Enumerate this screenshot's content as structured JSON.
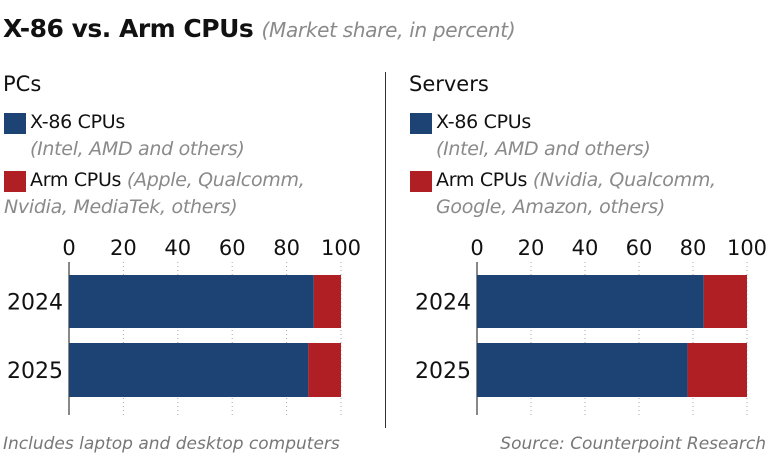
{
  "header": {
    "title": "X-86 vs. Arm CPUs",
    "subtitle": "(Market share, in percent)"
  },
  "footer": {
    "note": "Includes laptop and desktop computers",
    "source": "Source: Counterpoint Research"
  },
  "colors": {
    "x86": "#1c4373",
    "arm": "#b01f24"
  },
  "chart_data": [
    {
      "type": "bar",
      "orientation": "horizontal",
      "stacked": true,
      "title": "PCs",
      "categories": [
        "2024",
        "2025"
      ],
      "xlim": [
        0,
        100
      ],
      "ticks": [
        "0",
        "20",
        "40",
        "60",
        "80",
        "100"
      ],
      "legend": [
        {
          "name": "X-86 CPUs",
          "detail": "(Intel, AMD and others)"
        },
        {
          "name": "Arm CPUs",
          "detail": "(Apple, Qualcomm, Nvidia, MediaTek, others)",
          "detail_line1": "(Apple, Qualcomm,",
          "detail_line2": "Nvidia, MediaTek, others)"
        }
      ],
      "series": [
        {
          "name": "X-86 CPUs",
          "values": [
            90,
            88
          ]
        },
        {
          "name": "Arm CPUs",
          "values": [
            10,
            12
          ]
        }
      ]
    },
    {
      "type": "bar",
      "orientation": "horizontal",
      "stacked": true,
      "title": "Servers",
      "categories": [
        "2024",
        "2025"
      ],
      "xlim": [
        0,
        100
      ],
      "ticks": [
        "0",
        "20",
        "40",
        "60",
        "80",
        "100"
      ],
      "legend": [
        {
          "name": "X-86 CPUs",
          "detail": "(Intel, AMD and others)"
        },
        {
          "name": "Arm CPUs",
          "detail": "(Nvidia, Qualcomm, Google, Amazon, others)",
          "detail_line1": "(Nvidia, Qualcomm,",
          "detail_line2": "Google, Amazon, others)"
        }
      ],
      "series": [
        {
          "name": "X-86 CPUs",
          "values": [
            84,
            78
          ]
        },
        {
          "name": "Arm CPUs",
          "values": [
            16,
            22
          ]
        }
      ]
    }
  ]
}
